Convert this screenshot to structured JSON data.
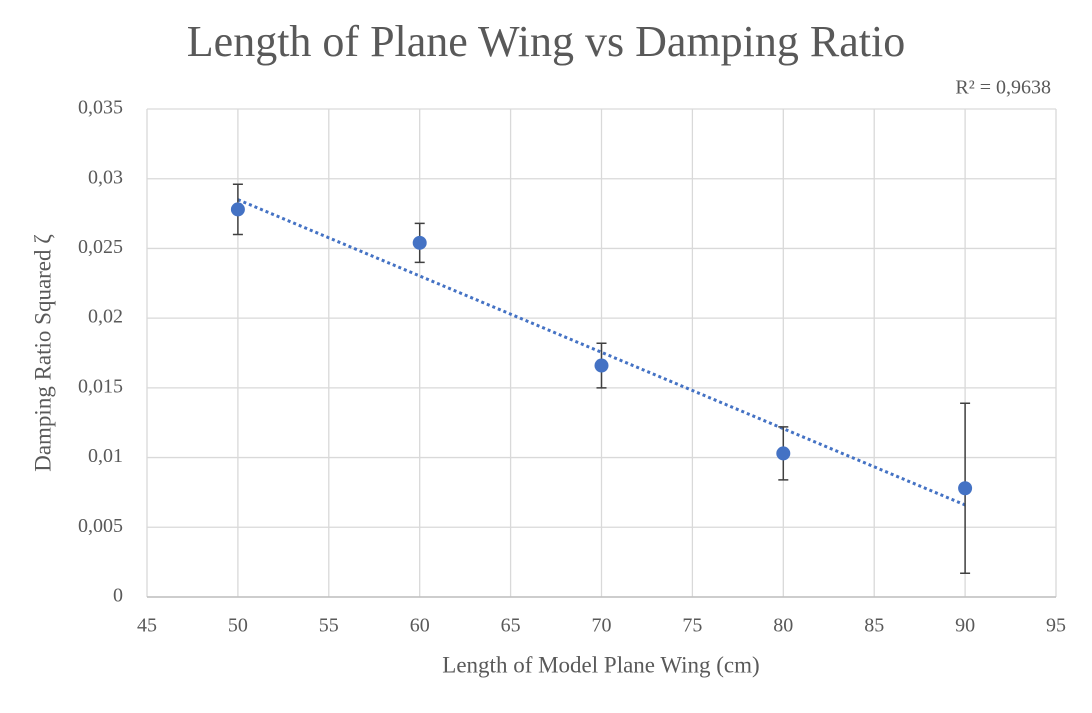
{
  "chart_data": {
    "type": "scatter",
    "title": "Length of Plane Wing vs Damping Ratio",
    "x_label": "Length of Model Plane Wing (cm)",
    "y_label": "Damping Ratio Squared ζ",
    "annotation": "R² = 0,9638",
    "x": [
      50,
      60,
      70,
      80,
      90
    ],
    "y": [
      0.0278,
      0.0254,
      0.0166,
      0.0103,
      0.0078
    ],
    "errors": [
      0.0018,
      0.0014,
      0.0016,
      0.0019,
      0.0061
    ],
    "color": "#4472c4",
    "error_color": "#404040",
    "trendline": {
      "x": [
        50,
        90
      ],
      "y": [
        0.0285,
        0.0066
      ],
      "color": "#4472c4"
    },
    "xlim": [
      45,
      95
    ],
    "xticks": [
      45,
      50,
      55,
      60,
      65,
      70,
      75,
      80,
      85,
      90,
      95
    ],
    "ylim": [
      0,
      0.035
    ],
    "yticks": [
      0,
      {
        "value": 0.005,
        "label": "0,005"
      },
      {
        "value": 0.01,
        "label": "0,01"
      },
      {
        "value": 0.015,
        "label": "0,015"
      },
      {
        "value": 0.02,
        "label": "0,02"
      },
      {
        "value": 0.025,
        "label": "0,025"
      },
      {
        "value": 0.03,
        "label": "0,03"
      },
      {
        "value": 0.035,
        "label": "0,035"
      }
    ],
    "grid": true
  }
}
